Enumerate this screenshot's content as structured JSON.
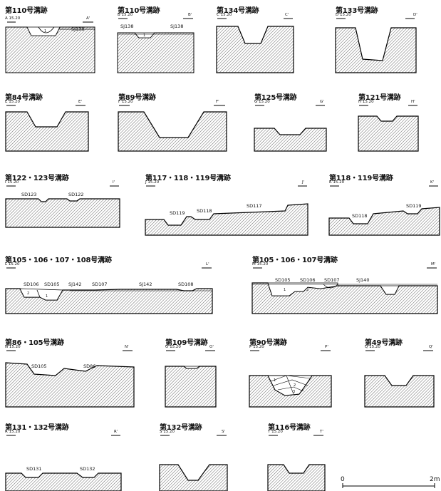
{
  "sections": [
    {
      "title": "第110号溝跡",
      "left_label": "A 15.20",
      "right_label": "A'",
      "features": [
        "SJ138"
      ],
      "fill_numbers": [
        "1"
      ]
    },
    {
      "title": "第110号溝跡",
      "left_label": "B 15.20",
      "right_label": "B'",
      "features": [
        "SJ138",
        "SJ138"
      ],
      "fill_numbers": [
        "1"
      ]
    },
    {
      "title": "第134号溝跡",
      "left_label": "C 15.20",
      "right_label": "C'",
      "features": [],
      "fill_numbers": []
    },
    {
      "title": "第133号溝跡",
      "left_label": "D 15.20",
      "right_label": "D'",
      "features": [],
      "fill_numbers": []
    },
    {
      "title": "第84号溝跡",
      "left_label": "E 15.20",
      "right_label": "E'",
      "features": [],
      "fill_numbers": []
    },
    {
      "title": "第89号溝跡",
      "left_label": "F 15.20",
      "right_label": "F'",
      "features": [],
      "fill_numbers": []
    },
    {
      "title": "第125号溝跡",
      "left_label": "G 15.20",
      "right_label": "G'",
      "features": [],
      "fill_numbers": []
    },
    {
      "title": "第121号溝跡",
      "left_label": "H 15.20",
      "right_label": "H'",
      "features": [],
      "fill_numbers": []
    },
    {
      "title": "第122・123号溝跡",
      "left_label": "I 15.20",
      "right_label": "I'",
      "features": [
        "SD123",
        "SD122"
      ],
      "fill_numbers": []
    },
    {
      "title": "第117・118・119号溝跡",
      "left_label": "J 15.20",
      "right_label": "J'",
      "features": [
        "SD119",
        "SD118",
        "SD117"
      ],
      "fill_numbers": []
    },
    {
      "title": "第118・119号溝跡",
      "left_label": "K 15.20",
      "right_label": "K'",
      "features": [
        "SD118",
        "SD119"
      ],
      "fill_numbers": []
    },
    {
      "title": "第105・106・107・108号溝跡",
      "left_label": "L 15.20",
      "right_label": "L'",
      "features": [
        "SD106",
        "SD105",
        "SJ142",
        "SD107",
        "SJ142",
        "SD108"
      ],
      "fill_numbers": [
        "2",
        "1"
      ]
    },
    {
      "title": "第105・106・107号溝跡",
      "left_label": "M 15.20",
      "right_label": "M'",
      "features": [
        "SD105",
        "SD106",
        "SD107",
        "SJ140"
      ],
      "fill_numbers": [
        "1",
        "2"
      ]
    },
    {
      "title": "第86・105号溝跡",
      "left_label": "N 15.20",
      "right_label": "N'",
      "features": [
        "SD105",
        "SD86"
      ],
      "fill_numbers": []
    },
    {
      "title": "第109号溝跡",
      "left_label": "O 15.20",
      "right_label": "O'",
      "features": [],
      "fill_numbers": []
    },
    {
      "title": "第90号溝跡",
      "left_label": "P 15.20",
      "right_label": "P'",
      "features": [],
      "fill_numbers": [
        "1",
        "2",
        "3"
      ]
    },
    {
      "title": "第49号溝跡",
      "left_label": "Q 15.20",
      "right_label": "Q'",
      "features": [],
      "fill_numbers": []
    },
    {
      "title": "第131・132号溝跡",
      "left_label": "R 15.20",
      "right_label": "R'",
      "features": [
        "SD131",
        "SD132"
      ],
      "fill_numbers": []
    },
    {
      "title": "第132号溝跡",
      "left_label": "S 15.20",
      "right_label": "S'",
      "features": [],
      "fill_numbers": []
    },
    {
      "title": "第116号溝跡",
      "left_label": "T 15.20",
      "right_label": "T'",
      "features": [],
      "fill_numbers": []
    }
  ],
  "scale": {
    "start": "0",
    "end": "2m"
  }
}
